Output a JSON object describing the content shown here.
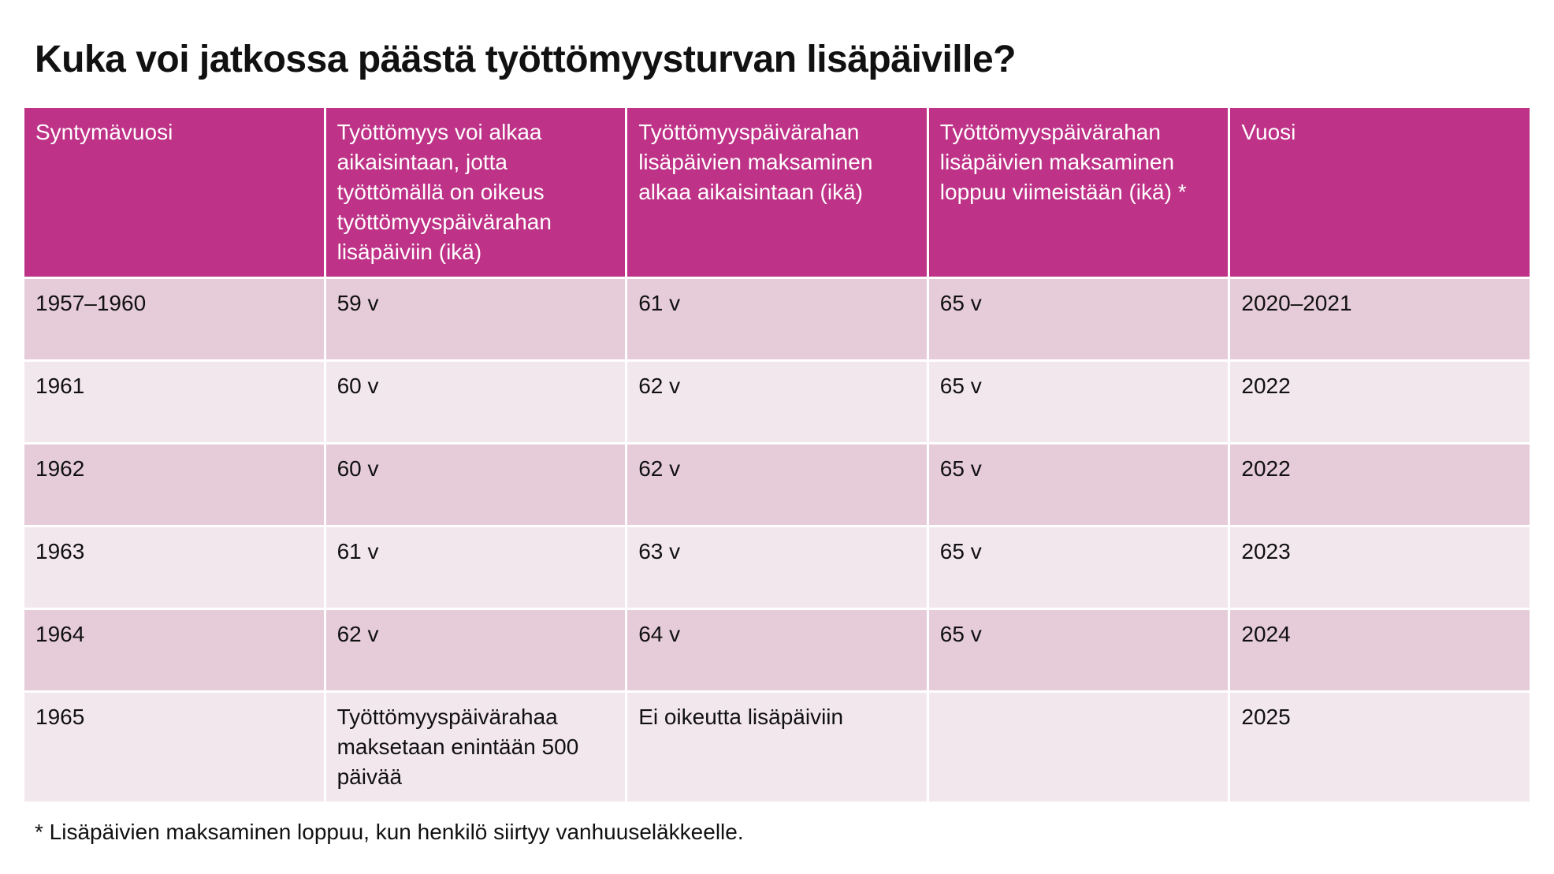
{
  "title": "Kuka voi jatkossa päästä työttömyysturvan lisäpäiville?",
  "table": {
    "headers": [
      "Syntymävuosi",
      "Työttömyys voi alkaa aikaisintaan, jotta työttömällä on oikeus työttömyyspäivärahan lisäpäiviin (ikä)",
      "Työttömyyspäivärahan lisäpäivien maksaminen alkaa aikaisintaan (ikä)",
      "Työttömyyspäivärahan lisäpäivien maksaminen loppuu viimeistään (ikä) *",
      "Vuosi"
    ],
    "rows": [
      [
        "1957–1960",
        "59 v",
        "61 v",
        "65 v",
        "2020–2021"
      ],
      [
        "1961",
        "60 v",
        "62 v",
        "65 v",
        "2022"
      ],
      [
        "1962",
        "60 v",
        "62 v",
        "65 v",
        "2022"
      ],
      [
        "1963",
        "61 v",
        "63 v",
        "65 v",
        "2023"
      ],
      [
        "1964",
        "62 v",
        "64 v",
        "65 v",
        "2024"
      ],
      [
        "1965",
        "Työttömyyspäivärahaa maksetaan enintään 500 päivää",
        "Ei oikeutta lisäpäiviin",
        null,
        "2025"
      ]
    ]
  },
  "footnote": "* Lisäpäivien maksaminen loppuu, kun henkilö siirtyy vanhuuseläkkeelle."
}
